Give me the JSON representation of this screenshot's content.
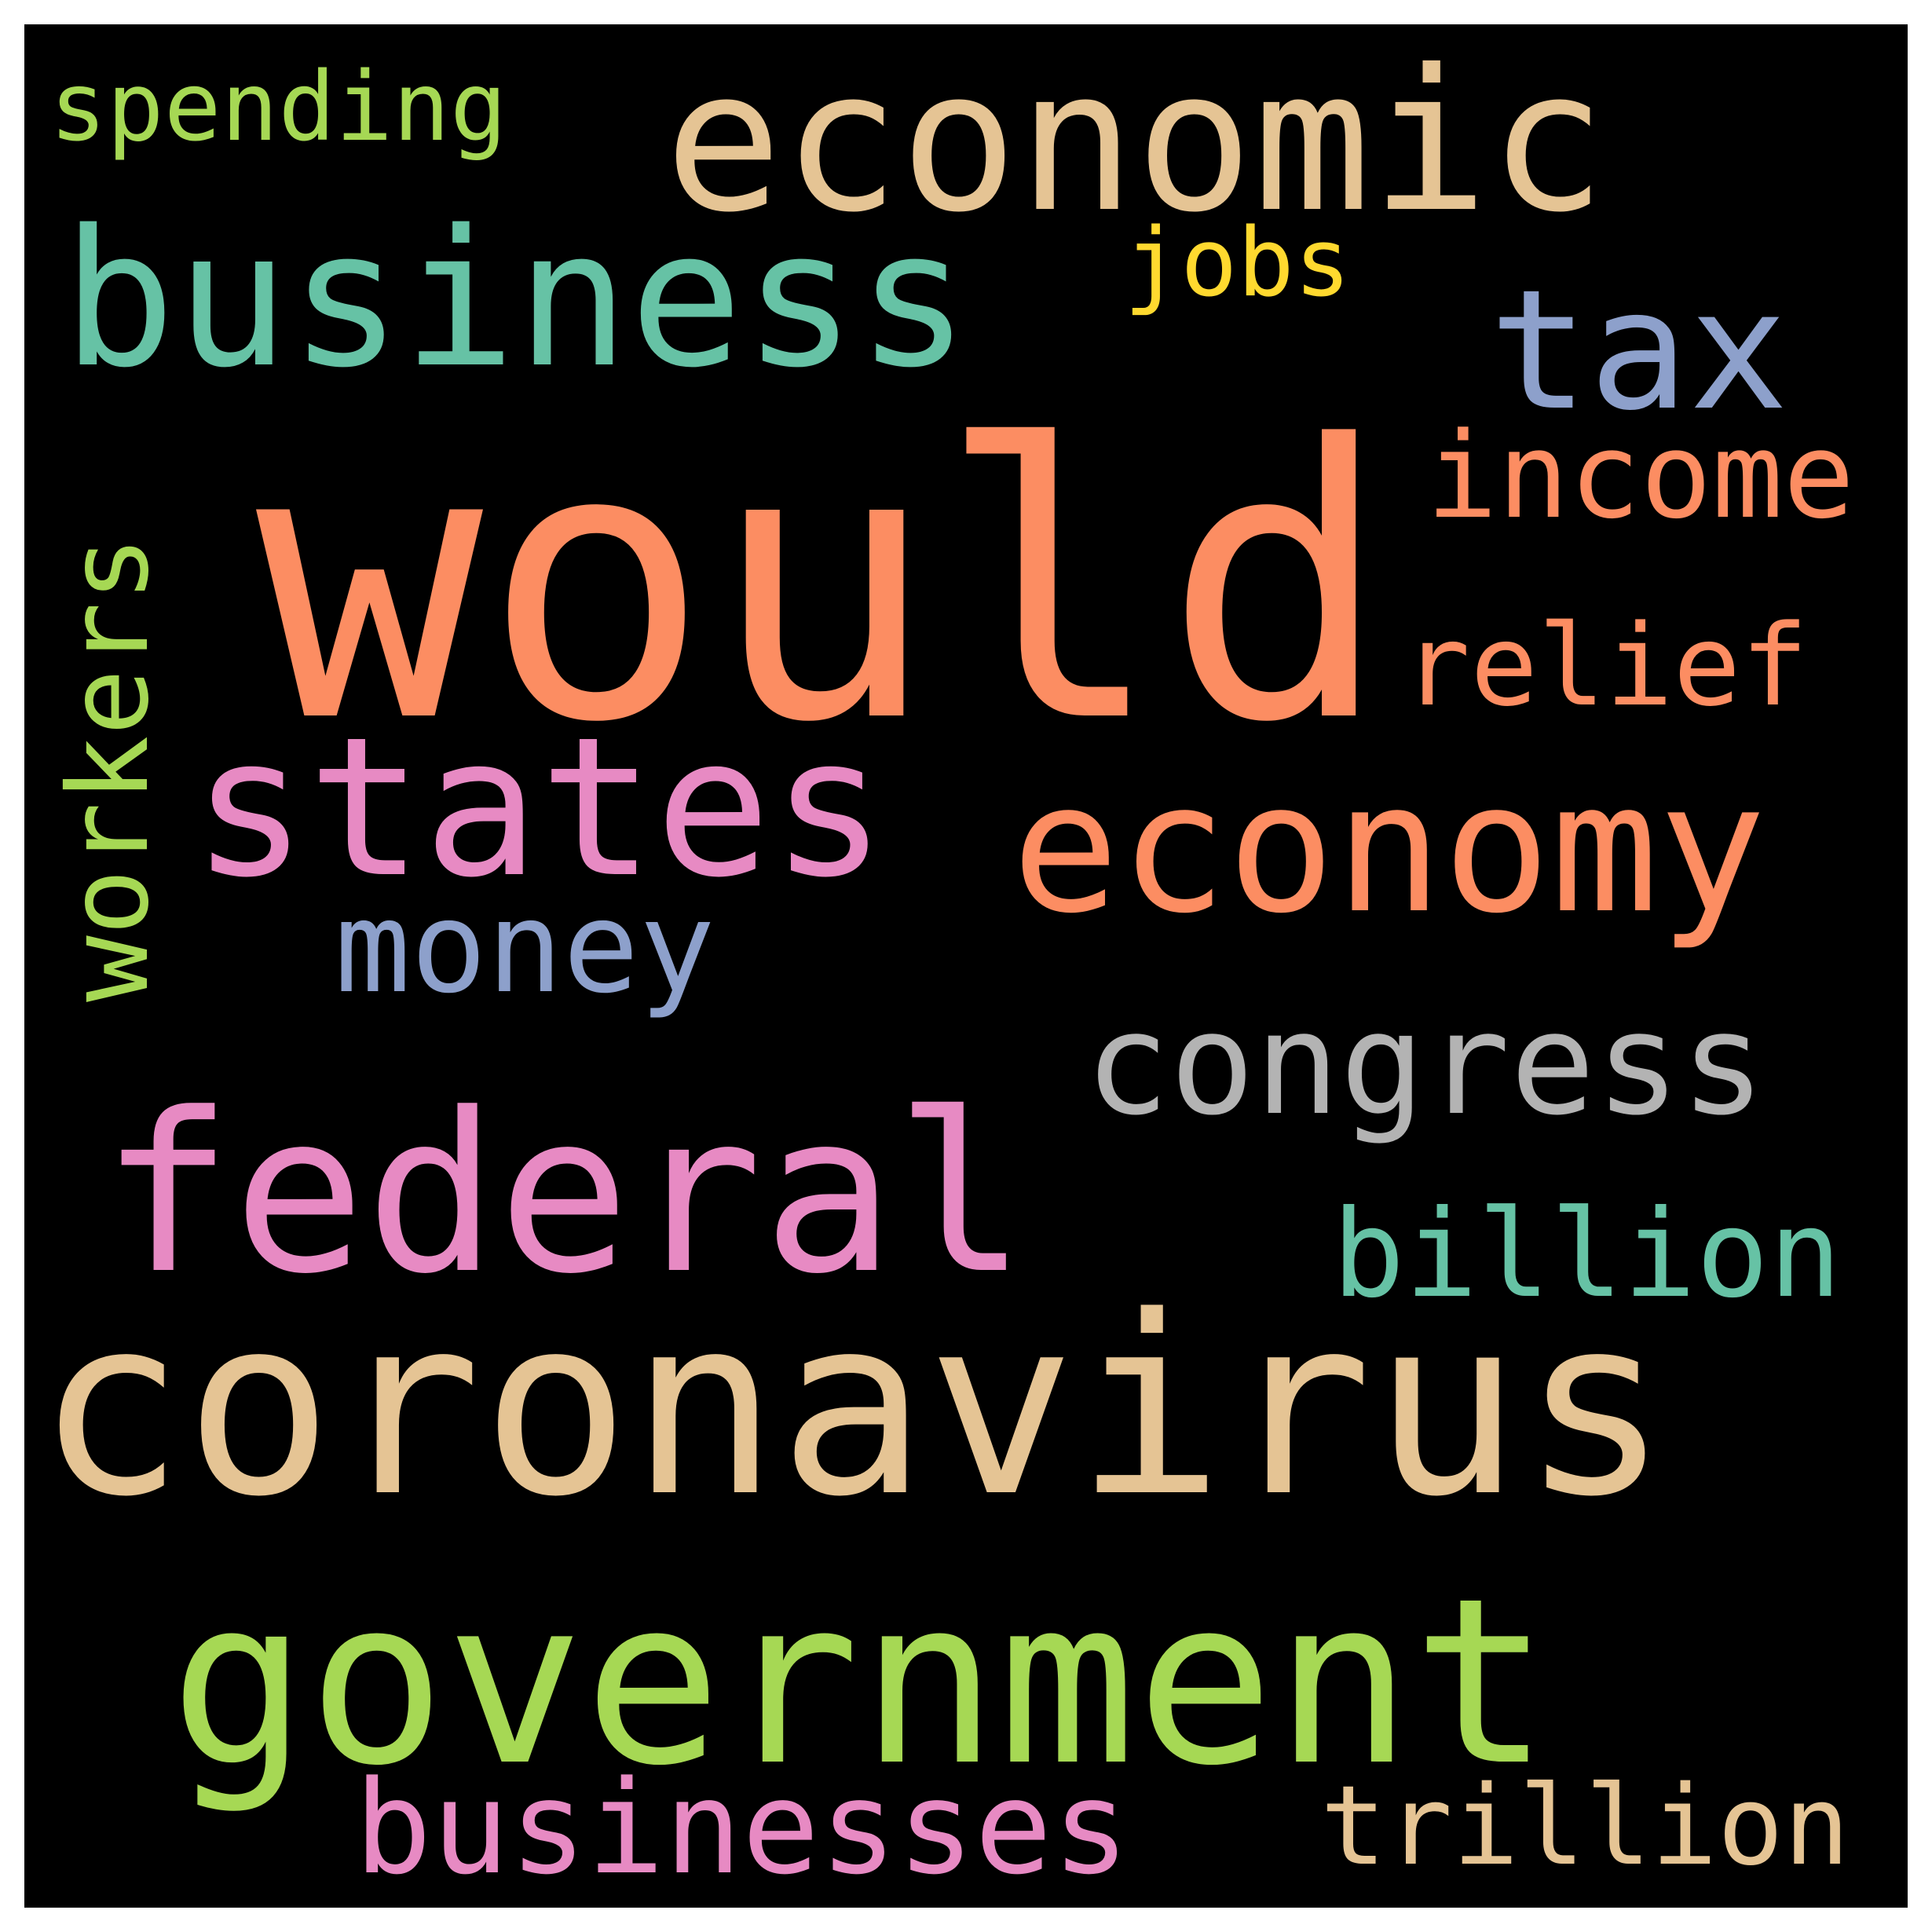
{
  "cloud": {
    "background": "#000000",
    "words": [
      {
        "id": "would",
        "text": "would",
        "color": "#fc8d62"
      },
      {
        "id": "coronavirus",
        "text": "coronavirus",
        "color": "#e5c494"
      },
      {
        "id": "government",
        "text": "government",
        "color": "#a6d854"
      },
      {
        "id": "economic",
        "text": "economic",
        "color": "#e5c494"
      },
      {
        "id": "federal",
        "text": "federal",
        "color": "#e78ac3"
      },
      {
        "id": "business",
        "text": "business",
        "color": "#66c2a5"
      },
      {
        "id": "states",
        "text": "states",
        "color": "#e78ac3"
      },
      {
        "id": "economy",
        "text": "economy",
        "color": "#fc8d62"
      },
      {
        "id": "congress",
        "text": "congress",
        "color": "#b3b3b3"
      },
      {
        "id": "tax",
        "text": "tax",
        "color": "#8da0cb"
      },
      {
        "id": "businesses",
        "text": "businesses",
        "color": "#e78ac3"
      },
      {
        "id": "money",
        "text": "money",
        "color": "#8da0cb"
      },
      {
        "id": "income",
        "text": "income",
        "color": "#fc8d62"
      },
      {
        "id": "workers",
        "text": "workers",
        "color": "#a6d854"
      },
      {
        "id": "billion",
        "text": "billion",
        "color": "#66c2a5"
      },
      {
        "id": "relief",
        "text": "relief",
        "color": "#fc8d62"
      },
      {
        "id": "trillion",
        "text": "trillion",
        "color": "#e5c494"
      },
      {
        "id": "spending",
        "text": "spending",
        "color": "#a6d854"
      },
      {
        "id": "jobs",
        "text": "jobs",
        "color": "#ffd92f"
      }
    ]
  }
}
